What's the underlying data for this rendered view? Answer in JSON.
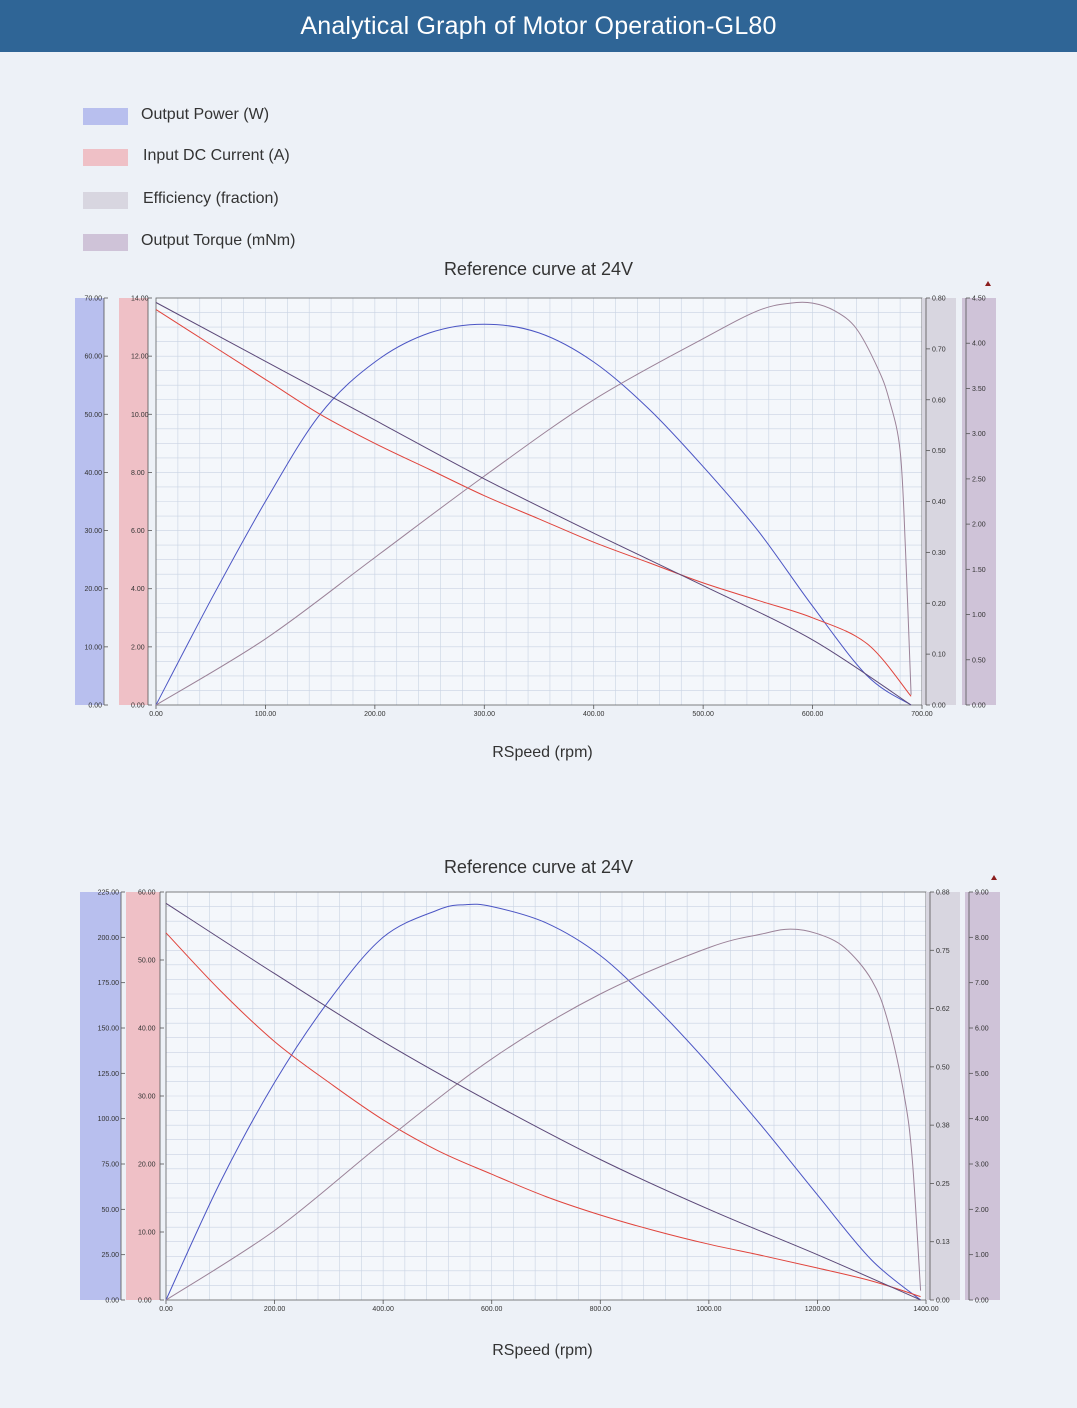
{
  "header": {
    "title": "Analytical Graph of Motor Operation-GL80"
  },
  "legend": {
    "items": [
      {
        "label": "Output Power (W)",
        "color": "#b8bfee"
      },
      {
        "label": "Input DC Current (A)",
        "color": "#efc0c6"
      },
      {
        "label": "Efficiency (fraction)",
        "color": "#d8d6e0"
      },
      {
        "label": "Output Torque (mNm)",
        "color": "#cfc3d8"
      }
    ]
  },
  "chart_data": [
    {
      "type": "line",
      "title": "Reference curve at 24V",
      "xlabel": "RSpeed (rpm)",
      "xlim": [
        0,
        700
      ],
      "x_ticks": [
        "0.00",
        "100.00",
        "200.00",
        "300.00",
        "400.00",
        "500.00",
        "600.00",
        "700.00"
      ],
      "axes": {
        "power": {
          "lim": [
            0,
            70
          ],
          "ticks": [
            "0.00",
            "10.00",
            "20.00",
            "30.00",
            "40.00",
            "50.00",
            "60.00",
            "70.00"
          ]
        },
        "current": {
          "lim": [
            0,
            14
          ],
          "ticks": [
            "0.00",
            "2.00",
            "4.00",
            "6.00",
            "8.00",
            "10.00",
            "12.00",
            "14.00"
          ]
        },
        "efficiency": {
          "lim": [
            0,
            0.8
          ],
          "ticks": [
            "0.00",
            "0.10",
            "0.20",
            "0.30",
            "0.40",
            "0.50",
            "0.60",
            "0.70",
            "0.80"
          ]
        },
        "torque": {
          "lim": [
            0,
            4.5
          ],
          "ticks": [
            "0.00",
            "0.50",
            "1.00",
            "1.50",
            "2.00",
            "2.50",
            "3.00",
            "3.50",
            "4.00",
            "4.50"
          ]
        }
      },
      "series": [
        {
          "name": "Output Power (W)",
          "axis": "power",
          "color": "#4b55c4",
          "x": [
            0,
            50,
            100,
            150,
            200,
            250,
            300,
            350,
            400,
            450,
            500,
            550,
            600,
            650,
            690
          ],
          "y": [
            0,
            18,
            35,
            50,
            59,
            64,
            65.5,
            64,
            59,
            51,
            41,
            30,
            17,
            5,
            0
          ]
        },
        {
          "name": "Input DC Current (A)",
          "axis": "current",
          "color": "#e0443c",
          "x": [
            0,
            50,
            100,
            150,
            200,
            250,
            300,
            350,
            400,
            450,
            500,
            550,
            600,
            650,
            690
          ],
          "y": [
            13.6,
            12.4,
            11.2,
            10.0,
            9.0,
            8.1,
            7.2,
            6.4,
            5.6,
            4.9,
            4.2,
            3.6,
            3.0,
            2.1,
            0.3
          ]
        },
        {
          "name": "Efficiency (fraction)",
          "axis": "efficiency",
          "color": "#9b8298",
          "x": [
            0,
            100,
            200,
            300,
            400,
            500,
            550,
            580,
            600,
            620,
            640,
            660,
            670,
            680,
            685,
            690
          ],
          "y": [
            0,
            0.13,
            0.29,
            0.45,
            0.6,
            0.72,
            0.775,
            0.79,
            0.79,
            0.775,
            0.74,
            0.66,
            0.6,
            0.5,
            0.3,
            0.02
          ]
        },
        {
          "name": "Output Torque (mNm)",
          "axis": "torque",
          "color": "#5b4878",
          "x": [
            0,
            100,
            200,
            300,
            400,
            500,
            600,
            690
          ],
          "y": [
            4.45,
            3.8,
            3.15,
            2.5,
            1.9,
            1.32,
            0.72,
            0.0
          ]
        }
      ]
    },
    {
      "type": "line",
      "title": "Reference curve at 24V",
      "xlabel": "RSpeed (rpm)",
      "xlim": [
        0,
        1400
      ],
      "x_ticks": [
        "0.00",
        "200.00",
        "400.00",
        "600.00",
        "800.00",
        "1000.00",
        "1200.00",
        "1400.00"
      ],
      "axes": {
        "power": {
          "lim": [
            0,
            225
          ],
          "ticks": [
            "0.00",
            "25.00",
            "50.00",
            "75.00",
            "100.00",
            "125.00",
            "150.00",
            "175.00",
            "200.00",
            "225.00"
          ]
        },
        "current": {
          "lim": [
            0,
            60
          ],
          "ticks": [
            "0.00",
            "10.00",
            "20.00",
            "30.00",
            "40.00",
            "50.00",
            "60.00"
          ]
        },
        "efficiency": {
          "lim": [
            0,
            0.88
          ],
          "ticks": [
            "0.00",
            "0.13",
            "0.25",
            "0.38",
            "0.50",
            "0.62",
            "0.75",
            "0.88"
          ]
        },
        "torque": {
          "lim": [
            0,
            9
          ],
          "ticks": [
            "0.00",
            "1.00",
            "2.00",
            "3.00",
            "4.00",
            "5.00",
            "6.00",
            "7.00",
            "8.00",
            "9.00"
          ]
        }
      },
      "series": [
        {
          "name": "Output Power (W)",
          "axis": "power",
          "color": "#4b55c4",
          "x": [
            0,
            100,
            200,
            300,
            400,
            500,
            550,
            600,
            700,
            800,
            900,
            1000,
            1100,
            1200,
            1300,
            1390
          ],
          "y": [
            0,
            65,
            120,
            165,
            200,
            215,
            218,
            217,
            208,
            190,
            162,
            130,
            95,
            58,
            22,
            0
          ]
        },
        {
          "name": "Input DC Current (A)",
          "axis": "current",
          "color": "#e0443c",
          "x": [
            0,
            100,
            200,
            300,
            400,
            500,
            600,
            700,
            800,
            900,
            1000,
            1100,
            1200,
            1300,
            1390
          ],
          "y": [
            54,
            45.5,
            38,
            32,
            26.5,
            22,
            18.5,
            15.2,
            12.5,
            10.2,
            8.2,
            6.5,
            4.7,
            2.8,
            0.5
          ]
        },
        {
          "name": "Efficiency (fraction)",
          "axis": "efficiency",
          "color": "#9b8298",
          "x": [
            0,
            200,
            400,
            600,
            800,
            1000,
            1100,
            1150,
            1200,
            1250,
            1300,
            1330,
            1360,
            1375,
            1390
          ],
          "y": [
            0,
            0.15,
            0.34,
            0.52,
            0.66,
            0.76,
            0.79,
            0.8,
            0.79,
            0.76,
            0.69,
            0.6,
            0.44,
            0.3,
            0.02
          ]
        },
        {
          "name": "Output Torque (mNm)",
          "axis": "torque",
          "color": "#5b4878",
          "x": [
            0,
            200,
            400,
            600,
            800,
            1000,
            1200,
            1390
          ],
          "y": [
            8.75,
            7.2,
            5.7,
            4.35,
            3.1,
            2.0,
            1.0,
            0.0
          ]
        }
      ]
    }
  ]
}
